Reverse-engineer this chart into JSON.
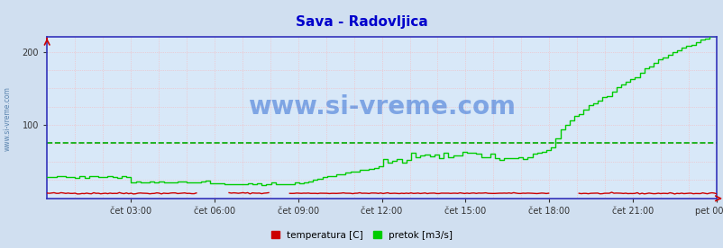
{
  "title": "Sava - Radovljica",
  "title_color": "#0000cc",
  "bg_color": "#d0dff0",
  "plot_bg_color": "#d8e8f8",
  "grid_color_v": "#ffaaaa",
  "grid_color_h": "#ffaaaa",
  "green_dash_color": "#00aa00",
  "x_labels": [
    "čet 03:00",
    "čet 06:00",
    "čet 09:00",
    "čet 12:00",
    "čet 15:00",
    "čet 18:00",
    "čet 21:00",
    "pet 00:00"
  ],
  "x_ticks_norm": [
    0.125,
    0.25,
    0.375,
    0.5,
    0.625,
    0.75,
    0.875,
    1.0
  ],
  "ylim": [
    0,
    220
  ],
  "yticks": [
    100,
    200
  ],
  "temp_color": "#cc0000",
  "flow_color": "#00cc00",
  "watermark_color": "#1155cc",
  "watermark_text": "www.si-vreme.com",
  "legend_items": [
    "temperatura [C]",
    "pretok [m3/s]"
  ],
  "legend_colors": [
    "#cc0000",
    "#00cc00"
  ],
  "n_points": 288,
  "flow_avg_value": 76,
  "spine_color": "#3333bb",
  "tick_color": "#333333",
  "tick_fontsize": 7
}
